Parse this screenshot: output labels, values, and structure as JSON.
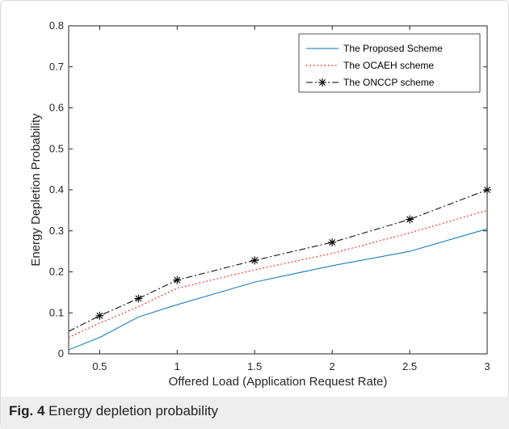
{
  "caption": {
    "label": "Fig. 4",
    "text": "Energy depletion probability"
  },
  "colors": {
    "proposed": "#0072bd",
    "ocaeh": "#ff0000",
    "onccp": "#000000",
    "caption_background": "#eeeeee"
  },
  "chart_data": {
    "type": "line",
    "title": "",
    "xlabel": "Offered Load (Application Request Rate)",
    "ylabel": "Energy Depletion Probability",
    "xlim": [
      0.3,
      3
    ],
    "ylim": [
      0,
      0.8
    ],
    "xticks": [
      0.5,
      1,
      1.5,
      2,
      2.5,
      3
    ],
    "yticks": [
      0,
      0.1,
      0.2,
      0.3,
      0.4,
      0.5,
      0.6,
      0.7,
      0.8
    ],
    "xtick_labels": [
      "0.5",
      "1",
      "1.5",
      "2",
      "2.5",
      "3"
    ],
    "ytick_labels": [
      "0",
      "0.1",
      "0.2",
      "0.3",
      "0.4",
      "0.5",
      "0.6",
      "0.7",
      "0.8"
    ],
    "grid": false,
    "legend_position": "top-right",
    "series": [
      {
        "name": "The Proposed Scheme",
        "line_style": "solid",
        "marker": "none",
        "color": "#0072bd",
        "x": [
          0.3,
          0.5,
          0.75,
          1,
          1.5,
          2,
          2.5,
          3
        ],
        "y": [
          0.01,
          0.04,
          0.09,
          0.12,
          0.175,
          0.215,
          0.25,
          0.305
        ]
      },
      {
        "name": "The OCAEH scheme",
        "line_style": "dotted",
        "marker": "none",
        "color": "#ff0000",
        "x": [
          0.3,
          0.5,
          0.75,
          1,
          1.5,
          2,
          2.5,
          3
        ],
        "y": [
          0.04,
          0.075,
          0.115,
          0.16,
          0.205,
          0.245,
          0.295,
          0.35
        ]
      },
      {
        "name": "The ONCCP scheme",
        "line_style": "dash-dot",
        "marker": "asterisk",
        "color": "#000000",
        "x": [
          0.3,
          0.5,
          0.75,
          1,
          1.5,
          2,
          2.5,
          3
        ],
        "y": [
          0.055,
          0.093,
          0.135,
          0.18,
          0.228,
          0.272,
          0.328,
          0.4
        ]
      }
    ]
  }
}
